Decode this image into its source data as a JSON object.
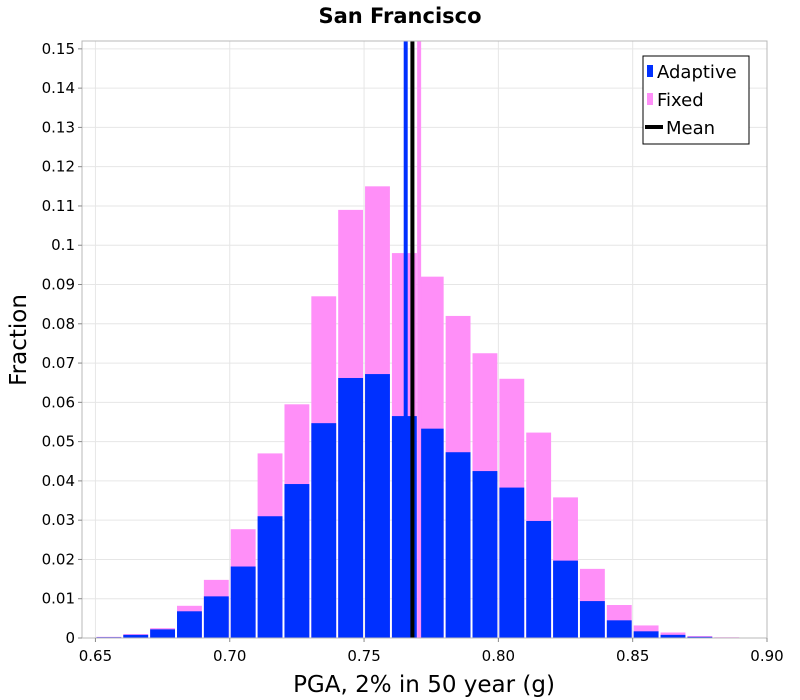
{
  "chart_data": {
    "type": "bar",
    "title": "San Francisco",
    "xlabel": "PGA, 2% in 50 year (g)",
    "ylabel": "Fraction",
    "xlim": [
      0.645,
      0.9
    ],
    "ylim": [
      0,
      0.152
    ],
    "bin_width": 0.01,
    "x_ticks": [
      {
        "value": 0.65,
        "label": "0.65"
      },
      {
        "value": 0.7,
        "label": "0.70"
      },
      {
        "value": 0.75,
        "label": "0.75"
      },
      {
        "value": 0.8,
        "label": "0.80"
      },
      {
        "value": 0.85,
        "label": "0.85"
      },
      {
        "value": 0.9,
        "label": "0.90"
      }
    ],
    "y_ticks": [
      {
        "value": 0,
        "label": "0"
      },
      {
        "value": 0.01,
        "label": "0.01"
      },
      {
        "value": 0.02,
        "label": "0.02"
      },
      {
        "value": 0.03,
        "label": "0.03"
      },
      {
        "value": 0.04,
        "label": "0.04"
      },
      {
        "value": 0.05,
        "label": "0.05"
      },
      {
        "value": 0.06,
        "label": "0.06"
      },
      {
        "value": 0.07,
        "label": "0.07"
      },
      {
        "value": 0.08,
        "label": "0.08"
      },
      {
        "value": 0.09,
        "label": "0.09"
      },
      {
        "value": 0.1,
        "label": "0.1"
      },
      {
        "value": 0.11,
        "label": "0.11"
      },
      {
        "value": 0.12,
        "label": "0.12"
      },
      {
        "value": 0.13,
        "label": "0.13"
      },
      {
        "value": 0.14,
        "label": "0.14"
      },
      {
        "value": 0.15,
        "label": "0.15"
      }
    ],
    "bin_centers": [
      0.655,
      0.665,
      0.675,
      0.685,
      0.695,
      0.705,
      0.715,
      0.725,
      0.735,
      0.745,
      0.755,
      0.765,
      0.775,
      0.785,
      0.795,
      0.805,
      0.815,
      0.825,
      0.835,
      0.845,
      0.855,
      0.865,
      0.875,
      0.885,
      0.895
    ],
    "series": [
      {
        "name": "Fixed",
        "color": "#ff8ff8",
        "values": [
          0.0003,
          0.001,
          0.0025,
          0.0082,
          0.0148,
          0.0277,
          0.047,
          0.0595,
          0.087,
          0.109,
          0.115,
          0.098,
          0.092,
          0.082,
          0.0725,
          0.066,
          0.0523,
          0.0358,
          0.0176,
          0.0084,
          0.0032,
          0.0014,
          0.0005,
          0.0002,
          0.0001
        ]
      },
      {
        "name": "Adaptive",
        "color": "#0030ff",
        "values": [
          0.0002,
          0.0008,
          0.0022,
          0.0068,
          0.0106,
          0.0182,
          0.031,
          0.0392,
          0.0547,
          0.0662,
          0.0672,
          0.0565,
          0.0533,
          0.0473,
          0.0425,
          0.0383,
          0.0298,
          0.0197,
          0.0094,
          0.0045,
          0.0017,
          0.0008,
          0.0003,
          0.0001,
          0.0
        ]
      }
    ],
    "mean_lines": [
      {
        "series": "Adaptive",
        "x": 0.7655,
        "color": "#0030ff"
      },
      {
        "series": "Fixed",
        "x": 0.7705,
        "color": "#ff8ff8"
      },
      {
        "series": "Combined",
        "x": 0.768,
        "color": "#000000"
      }
    ],
    "legend": {
      "position": "top-right",
      "entries": [
        {
          "label": "Adaptive",
          "color": "#0030ff"
        },
        {
          "label": "Fixed",
          "color": "#ff8ff8"
        },
        {
          "label": "Mean",
          "color": "#000000"
        }
      ]
    },
    "grid": true
  }
}
